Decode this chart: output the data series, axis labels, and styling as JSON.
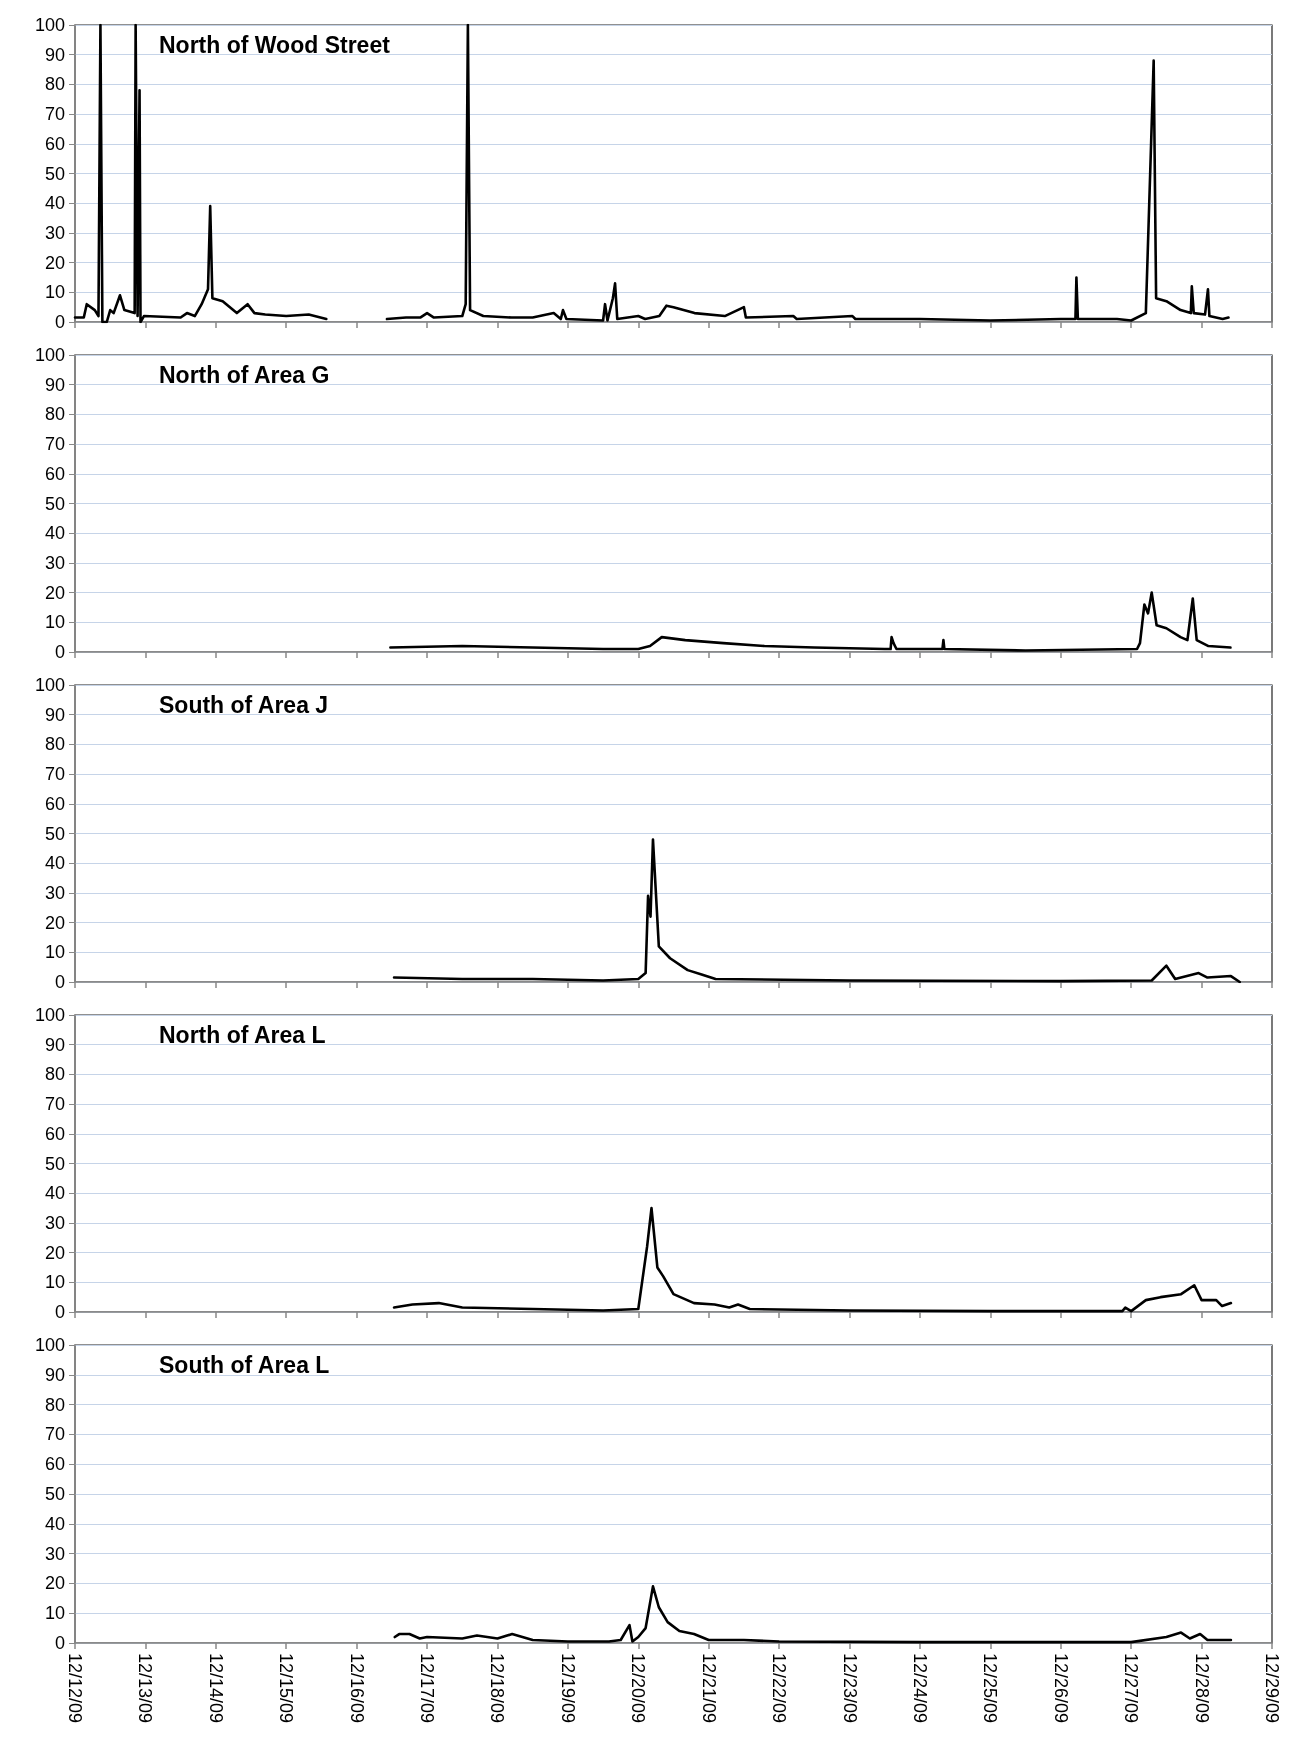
{
  "chart_data": [
    {
      "type": "line",
      "title": "North of Wood Street",
      "xlim": [
        "--12-12",
        "--12-29"
      ],
      "ylim": [
        0,
        100
      ],
      "yticks": [
        0,
        10,
        20,
        30,
        40,
        50,
        60,
        70,
        80,
        90,
        100
      ],
      "xticks": [
        {
          "value": "--12-12",
          "label": null
        },
        {
          "value": "--12-13",
          "label": null
        },
        {
          "value": "--12-14",
          "label": null
        },
        {
          "value": "--12-15",
          "label": null
        },
        {
          "value": "--12-16",
          "label": null
        },
        {
          "value": "--12-17",
          "label": null
        },
        {
          "value": "--12-18",
          "label": null
        },
        {
          "value": "--12-19",
          "label": null
        },
        {
          "value": "--12-20",
          "label": null
        },
        {
          "value": "--12-21",
          "label": null
        },
        {
          "value": "--12-22",
          "label": null
        },
        {
          "value": "--12-23",
          "label": null
        },
        {
          "value": "--12-24",
          "label": null
        },
        {
          "value": "--12-25",
          "label": null
        },
        {
          "value": "--12-26",
          "label": null
        },
        {
          "value": "--12-27",
          "label": null
        },
        {
          "value": "--12-28",
          "label": null
        },
        {
          "value": "--12-29",
          "label": null
        }
      ],
      "tick_labels": "y",
      "grid": "y",
      "marker": "none",
      "line_style": "solid",
      "series": [
        {
          "color": "#000000",
          "x": [
            "--12-12T00:00",
            "--12-12T03:00",
            "--12-12T04:00",
            "--12-12T06:45",
            "--12-12T08:00",
            "--12-12T08:40",
            "--12-12T09:20",
            "--12-12T10:50",
            "--12-12T12:00",
            "--12-12T13:10",
            "--12-12T15:20",
            "--12-12T16:50",
            "--12-12T20:20",
            "--12-12T20:40",
            "--12-12T21:20",
            "--12-12T22:00",
            "--12-12T22:20",
            "--12-12T23:30",
            "--12-13T12:00",
            "--12-13T14:10",
            "--12-13T16:50",
            "--12-13T19:10",
            "--12-13T21:20",
            "--12-13T22:05",
            "--12-13T22:50",
            "--12-14T02:20",
            "--12-14T07:10",
            "--12-14T10:50",
            "--12-14T13:10",
            "--12-14T16:50",
            "--12-15T00:00",
            "--12-15T07:40",
            "--12-15T13:40",
            "--12-16T00:00",
            "--12-16T10:20",
            "--12-16T16:50",
            "--12-16T21:40",
            "--12-17T00:00",
            "--12-17T02:20",
            "--12-17T12:00",
            "--12-17T13:10",
            "--12-17T13:55",
            "--12-17T14:40",
            "--12-17T19:10",
            "--12-18T04:50",
            "--12-18T12:00",
            "--12-18T19:10",
            "--12-18T21:35",
            "--12-18T22:20",
            "--12-18T23:30",
            "--12-19T12:00",
            "--12-19T12:40",
            "--12-19T13:30",
            "--12-19T15:20",
            "--12-19T16:05",
            "--12-19T16:50",
            "--12-20T00:00",
            "--12-20T02:20",
            "--12-20T07:10",
            "--12-20T09:35",
            "--12-20T12:00",
            "--12-20T19:10",
            "--12-21T05:30",
            "--12-21T12:00",
            "--12-21T12:40",
            "--12-22T04:50",
            "--12-22T06:00",
            "--12-23T01:00",
            "--12-23T02:00",
            "--12-24T00:00",
            "--12-25T00:00",
            "--12-26T00:00",
            "--12-26T05:00",
            "--12-26T05:20",
            "--12-26T05:50",
            "--12-26T19:10",
            "--12-27T00:00",
            "--12-27T05:00",
            "--12-27T07:40",
            "--12-27T08:30",
            "--12-27T12:00",
            "--12-27T16:50",
            "--12-27T20:20",
            "--12-27T20:40",
            "--12-27T21:20",
            "--12-28T01:10",
            "--12-28T02:10",
            "--12-28T02:40",
            "--12-28T07:10",
            "--12-28T09:10"
          ],
          "values": [
            1.5,
            1.5,
            6,
            4,
            2,
            100,
            0,
            0,
            4,
            3,
            9,
            4,
            3,
            100,
            2,
            78,
            0,
            2,
            1.5,
            3,
            2,
            6,
            11,
            39,
            8,
            7,
            3,
            6,
            3,
            2.5,
            2,
            2.5,
            1,
            null,
            1,
            1.5,
            1.5,
            3,
            1.5,
            2,
            6,
            100,
            4,
            2,
            1.5,
            1.5,
            3,
            1,
            4,
            1,
            0.5,
            6,
            0.5,
            8,
            13,
            1,
            2,
            1,
            2,
            5.5,
            5,
            3,
            2,
            5,
            1.5,
            2,
            1,
            2,
            1,
            1,
            0.5,
            1,
            1,
            15,
            1,
            1,
            0.5,
            3,
            88,
            8,
            7,
            4,
            3,
            12,
            3,
            2.5,
            11,
            2,
            1,
            1.5
          ]
        }
      ]
    },
    {
      "type": "line",
      "title": "North of Area G",
      "xlim": [
        "--12-12",
        "--12-29"
      ],
      "ylim": [
        0,
        100
      ],
      "yticks": [
        0,
        10,
        20,
        30,
        40,
        50,
        60,
        70,
        80,
        90,
        100
      ],
      "xticks": [
        {
          "value": "--12-12",
          "label": null
        },
        {
          "value": "--12-13",
          "label": null
        },
        {
          "value": "--12-14",
          "label": null
        },
        {
          "value": "--12-15",
          "label": null
        },
        {
          "value": "--12-16",
          "label": null
        },
        {
          "value": "--12-17",
          "label": null
        },
        {
          "value": "--12-18",
          "label": null
        },
        {
          "value": "--12-19",
          "label": null
        },
        {
          "value": "--12-20",
          "label": null
        },
        {
          "value": "--12-21",
          "label": null
        },
        {
          "value": "--12-22",
          "label": null
        },
        {
          "value": "--12-23",
          "label": null
        },
        {
          "value": "--12-24",
          "label": null
        },
        {
          "value": "--12-25",
          "label": null
        },
        {
          "value": "--12-26",
          "label": null
        },
        {
          "value": "--12-27",
          "label": null
        },
        {
          "value": "--12-28",
          "label": null
        },
        {
          "value": "--12-29",
          "label": null
        }
      ],
      "tick_labels": "y",
      "grid": "y",
      "marker": "none",
      "line_style": "solid",
      "series": [
        {
          "color": "#000000",
          "x": [
            "--12-16T11:30",
            "--12-17T12:00",
            "--12-18T12:00",
            "--12-19T12:00",
            "--12-20T00:00",
            "--12-20T04:00",
            "--12-20T08:00",
            "--12-20T16:00",
            "--12-21T05:00",
            "--12-21T19:00",
            "--12-22T12:00",
            "--12-23T12:00",
            "--12-23T14:00",
            "--12-23T14:20",
            "--12-23T15:00",
            "--12-23T16:00",
            "--12-24T07:40",
            "--12-24T08:00",
            "--12-24T08:20",
            "--12-25T12:00",
            "--12-27T02:00",
            "--12-27T03:00",
            "--12-27T04:30",
            "--12-27T05:45",
            "--12-27T07:00",
            "--12-27T08:40",
            "--12-27T12:00",
            "--12-27T16:50",
            "--12-27T19:10",
            "--12-27T21:00",
            "--12-27T22:20",
            "--12-28T02:20",
            "--12-28T09:50"
          ],
          "values": [
            1.5,
            2,
            1.5,
            1,
            1,
            2,
            5,
            4,
            3,
            2,
            1.5,
            1,
            1,
            5,
            3,
            1,
            1,
            4,
            1,
            0.5,
            1,
            3,
            16,
            13,
            20,
            9,
            8,
            5,
            4,
            18,
            4,
            2,
            1.5
          ]
        }
      ]
    },
    {
      "type": "line",
      "title": "South of Area J",
      "xlim": [
        "--12-12",
        "--12-29"
      ],
      "ylim": [
        0,
        100
      ],
      "yticks": [
        0,
        10,
        20,
        30,
        40,
        50,
        60,
        70,
        80,
        90,
        100
      ],
      "xticks": [
        {
          "value": "--12-12",
          "label": null
        },
        {
          "value": "--12-13",
          "label": null
        },
        {
          "value": "--12-14",
          "label": null
        },
        {
          "value": "--12-15",
          "label": null
        },
        {
          "value": "--12-16",
          "label": null
        },
        {
          "value": "--12-17",
          "label": null
        },
        {
          "value": "--12-18",
          "label": null
        },
        {
          "value": "--12-19",
          "label": null
        },
        {
          "value": "--12-20",
          "label": null
        },
        {
          "value": "--12-21",
          "label": null
        },
        {
          "value": "--12-22",
          "label": null
        },
        {
          "value": "--12-23",
          "label": null
        },
        {
          "value": "--12-24",
          "label": null
        },
        {
          "value": "--12-25",
          "label": null
        },
        {
          "value": "--12-26",
          "label": null
        },
        {
          "value": "--12-27",
          "label": null
        },
        {
          "value": "--12-28",
          "label": null
        },
        {
          "value": "--12-29",
          "label": null
        }
      ],
      "tick_labels": "y",
      "grid": "y",
      "marker": "none",
      "line_style": "solid",
      "series": [
        {
          "color": "#000000",
          "x": [
            "--12-16T12:45",
            "--12-17T12:00",
            "--12-18T12:00",
            "--12-19T12:00",
            "--12-20T00:00",
            "--12-20T02:30",
            "--12-20T03:20",
            "--12-20T04:10",
            "--12-20T05:00",
            "--12-20T07:00",
            "--12-20T10:50",
            "--12-20T16:50",
            "--12-20T21:35",
            "--12-21T02:20",
            "--12-23T00:00",
            "--12-26T00:00",
            "--12-27T07:00",
            "--12-27T12:00",
            "--12-27T15:00",
            "--12-27T23:00",
            "--12-28T02:00",
            "--12-28T10:00",
            "--12-28T13:00"
          ],
          "values": [
            1.5,
            1,
            1,
            0.5,
            1,
            3,
            29,
            22,
            48,
            12,
            8,
            4,
            2.5,
            1,
            0.5,
            0.3,
            0.5,
            5.5,
            1,
            3,
            1.5,
            2,
            0
          ]
        }
      ]
    },
    {
      "type": "line",
      "title": "North of Area L",
      "xlim": [
        "--12-12",
        "--12-29"
      ],
      "ylim": [
        0,
        100
      ],
      "yticks": [
        0,
        10,
        20,
        30,
        40,
        50,
        60,
        70,
        80,
        90,
        100
      ],
      "xticks": [
        {
          "value": "--12-12",
          "label": null
        },
        {
          "value": "--12-13",
          "label": null
        },
        {
          "value": "--12-14",
          "label": null
        },
        {
          "value": "--12-15",
          "label": null
        },
        {
          "value": "--12-16",
          "label": null
        },
        {
          "value": "--12-17",
          "label": null
        },
        {
          "value": "--12-18",
          "label": null
        },
        {
          "value": "--12-19",
          "label": null
        },
        {
          "value": "--12-20",
          "label": null
        },
        {
          "value": "--12-21",
          "label": null
        },
        {
          "value": "--12-22",
          "label": null
        },
        {
          "value": "--12-23",
          "label": null
        },
        {
          "value": "--12-24",
          "label": null
        },
        {
          "value": "--12-25",
          "label": null
        },
        {
          "value": "--12-26",
          "label": null
        },
        {
          "value": "--12-27",
          "label": null
        },
        {
          "value": "--12-28",
          "label": null
        },
        {
          "value": "--12-29",
          "label": null
        }
      ],
      "tick_labels": "y",
      "grid": "y",
      "marker": "none",
      "line_style": "solid",
      "series": [
        {
          "color": "#000000",
          "x": [
            "--12-16T12:45",
            "--12-16T19:00",
            "--12-17T04:00",
            "--12-17T12:00",
            "--12-18T12:00",
            "--12-19T12:00",
            "--12-20T00:00",
            "--12-20T03:00",
            "--12-20T04:30",
            "--12-20T06:30",
            "--12-20T08:30",
            "--12-20T12:00",
            "--12-20T19:00",
            "--12-21T02:00",
            "--12-21T07:00",
            "--12-21T10:00",
            "--12-21T14:00",
            "--12-23T00:00",
            "--12-25T00:00",
            "--12-26T21:00",
            "--12-26T22:00",
            "--12-27T00:00",
            "--12-27T05:00",
            "--12-27T10:00",
            "--12-27T17:00",
            "--12-27T21:30",
            "--12-28T00:00",
            "--12-28T05:00",
            "--12-28T07:00",
            "--12-28T10:00"
          ],
          "values": [
            1.5,
            2.5,
            3,
            1.5,
            1,
            0.5,
            1,
            22,
            35,
            15,
            12,
            6,
            3,
            2.5,
            1.5,
            2.5,
            1,
            0.5,
            0.3,
            0.3,
            1.5,
            0.3,
            4,
            5,
            6,
            9,
            4,
            4,
            2,
            3
          ]
        }
      ]
    },
    {
      "type": "line",
      "title": "South of Area L",
      "xlim": [
        "--12-12",
        "--12-29"
      ],
      "ylim": [
        0,
        100
      ],
      "yticks": [
        0,
        10,
        20,
        30,
        40,
        50,
        60,
        70,
        80,
        90,
        100
      ],
      "xticks": [
        {
          "value": "--12-12",
          "label": "12/12/09"
        },
        {
          "value": "--12-13",
          "label": "12/13/09"
        },
        {
          "value": "--12-14",
          "label": "12/14/09"
        },
        {
          "value": "--12-15",
          "label": "12/15/09"
        },
        {
          "value": "--12-16",
          "label": "12/16/09"
        },
        {
          "value": "--12-17",
          "label": "12/17/09"
        },
        {
          "value": "--12-18",
          "label": "12/18/09"
        },
        {
          "value": "--12-19",
          "label": "12/19/09"
        },
        {
          "value": "--12-20",
          "label": "12/20/09"
        },
        {
          "value": "--12-21",
          "label": "12/21/09"
        },
        {
          "value": "--12-22",
          "label": "12/22/09"
        },
        {
          "value": "--12-23",
          "label": "12/23/09"
        },
        {
          "value": "--12-24",
          "label": "12/24/09"
        },
        {
          "value": "--12-25",
          "label": "12/25/09"
        },
        {
          "value": "--12-26",
          "label": "12/26/09"
        },
        {
          "value": "--12-27",
          "label": "12/27/09"
        },
        {
          "value": "--12-28",
          "label": "12/28/09"
        },
        {
          "value": "--12-29",
          "label": "12/29/09"
        }
      ],
      "grid": "y",
      "marker": "none",
      "line_style": "solid",
      "series": [
        {
          "color": "#000000",
          "x": [
            "--12-16T13:00",
            "--12-16T14:30",
            "--12-16T18:00",
            "--12-16T21:30",
            "--12-17T00:00",
            "--12-17T12:00",
            "--12-17T17:00",
            "--12-18T00:00",
            "--12-18T05:00",
            "--12-18T12:00",
            "--12-19T00:00",
            "--12-19T14:00",
            "--12-19T18:00",
            "--12-19T21:00",
            "--12-19T22:00",
            "--12-20T00:00",
            "--12-20T02:30",
            "--12-20T05:00",
            "--12-20T07:00",
            "--12-20T10:00",
            "--12-20T14:00",
            "--12-20T19:00",
            "--12-21T00:00",
            "--12-21T12:00",
            "--12-22T00:00",
            "--12-24T00:00",
            "--12-27T00:00",
            "--12-27T12:00",
            "--12-27T17:00",
            "--12-27T20:00",
            "--12-27T23:30",
            "--12-28T02:00",
            "--12-28T10:00"
          ],
          "values": [
            2,
            3,
            3,
            1.5,
            2,
            1.5,
            2.5,
            1.5,
            3,
            1,
            0.5,
            0.5,
            1,
            6,
            0.5,
            2,
            5,
            19,
            12,
            7,
            4,
            3,
            1,
            1,
            0.5,
            0.3,
            0.3,
            2,
            3.5,
            1.5,
            3,
            1,
            1
          ]
        }
      ]
    }
  ]
}
